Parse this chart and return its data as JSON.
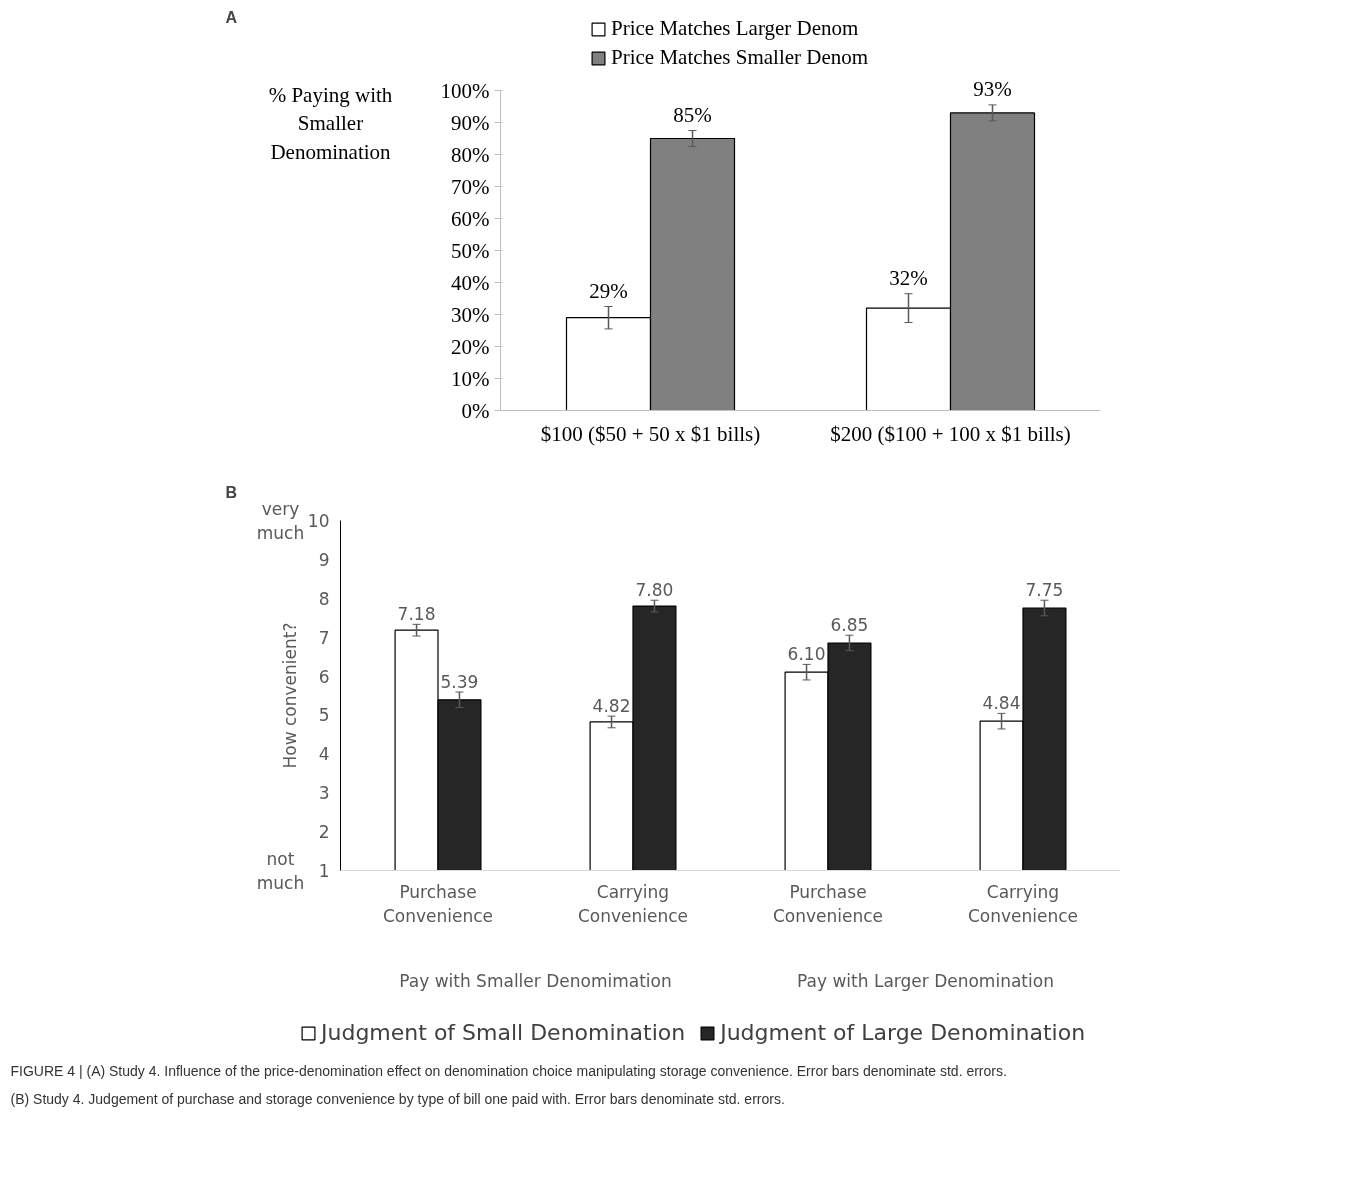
{
  "chart_data": [
    {
      "type": "bar",
      "ylabel": "% Paying with Smaller Denomination",
      "categories": [
        "$100 ($50 + 50 x $1 bills)",
        "$200 ($100 + 100 x $1 bills)"
      ],
      "series": [
        {
          "name": "Price Matches Larger Denom",
          "color": "#ffffff",
          "values": [
            29,
            32
          ],
          "errors": [
            3.5,
            4.5
          ],
          "value_labels": [
            "29%",
            "32%"
          ]
        },
        {
          "name": "Price Matches Smaller Denom",
          "color": "#808080",
          "values": [
            85,
            93
          ],
          "errors": [
            2.5,
            2.5
          ],
          "value_labels": [
            "85%",
            "93%"
          ]
        }
      ],
      "ylim": [
        0,
        100
      ],
      "yticks": [
        {
          "value": 0,
          "label": "0%"
        },
        {
          "value": 10,
          "label": "10%"
        },
        {
          "value": 20,
          "label": "20%"
        },
        {
          "value": 30,
          "label": "30%"
        },
        {
          "value": 40,
          "label": "40%"
        },
        {
          "value": 50,
          "label": "50%"
        },
        {
          "value": 60,
          "label": "60%"
        },
        {
          "value": 70,
          "label": "70%"
        },
        {
          "value": 80,
          "label": "80%"
        },
        {
          "value": 90,
          "label": "90%"
        },
        {
          "value": 100,
          "label": "100%"
        }
      ],
      "legend": "top",
      "annotations": [
        "A"
      ]
    },
    {
      "type": "bar",
      "ylabel": "How convenient?",
      "categories": [
        "Purchase Convenience",
        "Carrying Convenience",
        "Purchase Convenience",
        "Carrying Convenience"
      ],
      "series": [
        {
          "name": "Judgment of Small Denomination",
          "color": "#ffffff",
          "values": [
            7.18,
            4.82,
            6.1,
            4.84
          ],
          "errors": [
            0.15,
            0.15,
            0.2,
            0.2
          ],
          "value_labels": [
            "7.18",
            "4.82",
            "6.10",
            "4.84"
          ]
        },
        {
          "name": "Judgment of Large Denomination",
          "color": "#262626",
          "values": [
            5.39,
            7.8,
            6.85,
            7.75
          ],
          "errors": [
            0.2,
            0.15,
            0.2,
            0.2
          ],
          "value_labels": [
            "5.39",
            "7.80",
            "6.85",
            "7.75"
          ]
        }
      ],
      "ylim": [
        1,
        10
      ],
      "yticks": [
        1,
        2,
        3,
        4,
        5,
        6,
        7,
        8,
        9,
        10
      ],
      "legend": "bottom",
      "annotations": [
        "B",
        "very much",
        "not much",
        "Pay with Smaller Denomimation",
        "Pay with Larger Denomination",
        "FIGURE 4 | (A) Study 4. Influence of the price-denomination effect on denomination choice manipulating storage convenience. Error bars denominate std. errors.",
        "(B) Study 4. Judgement of purchase and storage convenience by type of bill one paid with. Error bars denominate std. errors."
      ]
    }
  ]
}
